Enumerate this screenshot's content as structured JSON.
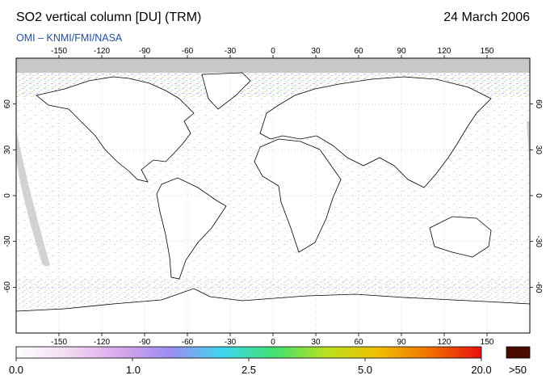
{
  "header": {
    "title": "SO2 vertical column [DU] (TRM)",
    "date": "24 March 2006",
    "credit": "OMI  –  KNMI/FMI/NASA"
  },
  "map": {
    "lon_ticks": [
      -150,
      -120,
      -90,
      -60,
      -30,
      0,
      30,
      60,
      90,
      120,
      150
    ],
    "lat_ticks": [
      60,
      30,
      0,
      -30,
      -60
    ],
    "lon_range": [
      -180,
      180
    ],
    "lat_range": [
      -90,
      90
    ],
    "no_data_color": "#c8c8c8",
    "coastline_color": "#000000"
  },
  "colorbar": {
    "labels": [
      "0.0",
      "1.0",
      "2.5",
      "5.0",
      "20.0",
      ">50"
    ],
    "label_values": [
      0.0,
      1.0,
      2.5,
      5.0,
      20.0
    ],
    "colors": [
      "#ffffff",
      "#f3dcf3",
      "#d9a7ec",
      "#9b8cf0",
      "#3fd6f0",
      "#40e070",
      "#b8e020",
      "#f0c000",
      "#f07000",
      "#e81010"
    ],
    "overflow_color": "#4a0a00"
  }
}
